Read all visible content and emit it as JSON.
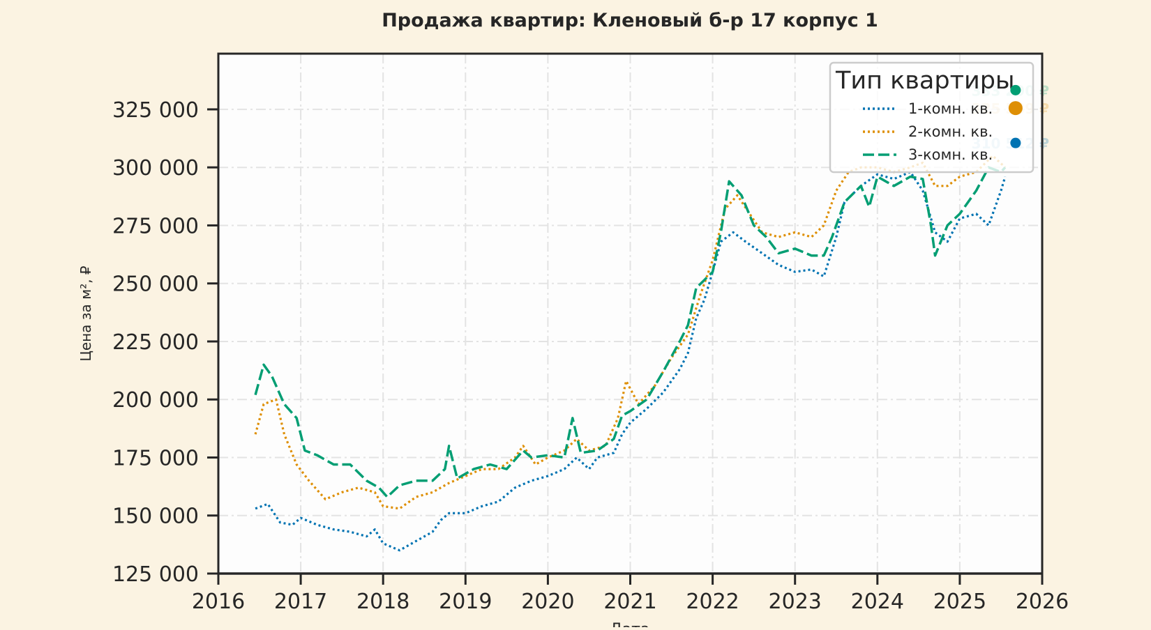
{
  "chart_data": {
    "type": "line",
    "title": "Продажа квартир: Кленовый б-р 17 корпус 1",
    "xlabel": "Дата",
    "ylabel": "Цена за м², ₽",
    "xlim": [
      2016,
      2026
    ],
    "ylim": [
      125000,
      349000
    ],
    "x_ticks": [
      2016,
      2017,
      2018,
      2019,
      2020,
      2021,
      2022,
      2023,
      2024,
      2025,
      2026
    ],
    "x_tick_labels": [
      "2016",
      "2017",
      "2018",
      "2019",
      "2020",
      "2021",
      "2022",
      "2023",
      "2024",
      "2025",
      "2026"
    ],
    "y_ticks": [
      125000,
      150000,
      175000,
      200000,
      225000,
      250000,
      275000,
      300000,
      325000
    ],
    "y_tick_labels": [
      "125 000",
      "150 000",
      "175 000",
      "200 000",
      "225 000",
      "250 000",
      "275 000",
      "300 000",
      "325 000"
    ],
    "grid": true,
    "legend": {
      "title": "Тип квартиры",
      "placement": "top-right"
    },
    "series": [
      {
        "name": "1-комн. кв.",
        "color": "#0173b2",
        "style": "dotted",
        "x": [
          2016.45,
          2016.6,
          2016.75,
          2016.9,
          2017.0,
          2017.2,
          2017.4,
          2017.6,
          2017.8,
          2017.9,
          2018.0,
          2018.2,
          2018.4,
          2018.6,
          2018.7,
          2018.8,
          2019.0,
          2019.2,
          2019.4,
          2019.6,
          2019.8,
          2020.0,
          2020.2,
          2020.35,
          2020.5,
          2020.6,
          2020.8,
          2020.9,
          2021.0,
          2021.2,
          2021.4,
          2021.6,
          2021.7,
          2021.8,
          2021.9,
          2022.0,
          2022.1,
          2022.25,
          2022.4,
          2022.6,
          2022.8,
          2023.0,
          2023.2,
          2023.35,
          2023.5,
          2023.6,
          2023.8,
          2024.0,
          2024.2,
          2024.4,
          2024.55,
          2024.7,
          2024.85,
          2025.0,
          2025.2,
          2025.35,
          2025.5,
          2025.55
        ],
        "y": [
          153000,
          155000,
          147000,
          146000,
          149000,
          146000,
          144000,
          143000,
          141000,
          144000,
          138000,
          135000,
          139000,
          143000,
          148000,
          151000,
          151000,
          154000,
          156000,
          162000,
          165000,
          167000,
          170000,
          175000,
          170000,
          175000,
          177000,
          185000,
          190000,
          196000,
          203000,
          213000,
          220000,
          235000,
          243000,
          255000,
          268000,
          272000,
          268000,
          263000,
          258000,
          255000,
          256000,
          253000,
          270000,
          285000,
          292000,
          297000,
          295000,
          298000,
          290000,
          272000,
          268000,
          278000,
          280000,
          275000,
          290000,
          296000
        ],
        "last_value": 310512,
        "last_label": "310 512 ₽"
      },
      {
        "name": "2-комн. кв.",
        "color": "#de8f05",
        "style": "dotted",
        "x": [
          2016.45,
          2016.55,
          2016.7,
          2016.8,
          2016.95,
          2017.1,
          2017.3,
          2017.5,
          2017.7,
          2017.9,
          2018.0,
          2018.2,
          2018.4,
          2018.6,
          2018.8,
          2019.0,
          2019.2,
          2019.4,
          2019.6,
          2019.7,
          2019.85,
          2020.0,
          2020.2,
          2020.35,
          2020.5,
          2020.7,
          2020.85,
          2020.95,
          2021.1,
          2021.3,
          2021.5,
          2021.7,
          2021.85,
          2022.0,
          2022.15,
          2022.3,
          2022.45,
          2022.6,
          2022.8,
          2023.0,
          2023.2,
          2023.35,
          2023.5,
          2023.65,
          2023.8,
          2024.0,
          2024.2,
          2024.4,
          2024.55,
          2024.7,
          2024.85,
          2025.0,
          2025.2,
          2025.4,
          2025.55
        ],
        "y": [
          185000,
          198000,
          200000,
          185000,
          172000,
          165000,
          157000,
          160000,
          162000,
          160000,
          154000,
          153000,
          158000,
          160000,
          164000,
          167000,
          170000,
          170000,
          175000,
          180000,
          172000,
          175000,
          178000,
          183000,
          178000,
          180000,
          192000,
          208000,
          198000,
          206000,
          218000,
          228000,
          245000,
          260000,
          282000,
          288000,
          280000,
          272000,
          270000,
          272000,
          270000,
          275000,
          290000,
          298000,
          300000,
          300000,
          298000,
          300000,
          302000,
          292000,
          292000,
          296000,
          298000,
          305000,
          300000
        ],
        "last_value": 325539,
        "last_label": "325 539 ₽"
      },
      {
        "name": "3-комн. кв.",
        "color": "#029e73",
        "style": "dashed",
        "x": [
          2016.45,
          2016.55,
          2016.65,
          2016.8,
          2016.95,
          2017.05,
          2017.2,
          2017.4,
          2017.6,
          2017.8,
          2017.95,
          2018.05,
          2018.2,
          2018.4,
          2018.6,
          2018.75,
          2018.8,
          2018.9,
          2019.1,
          2019.3,
          2019.5,
          2019.7,
          2019.8,
          2020.0,
          2020.2,
          2020.3,
          2020.4,
          2020.6,
          2020.8,
          2020.9,
          2021.0,
          2021.2,
          2021.4,
          2021.6,
          2021.7,
          2021.8,
          2022.0,
          2022.1,
          2022.2,
          2022.35,
          2022.5,
          2022.65,
          2022.8,
          2023.0,
          2023.2,
          2023.35,
          2023.45,
          2023.6,
          2023.8,
          2023.9,
          2024.0,
          2024.2,
          2024.4,
          2024.55,
          2024.65,
          2024.7,
          2024.85,
          2025.0,
          2025.2,
          2025.35,
          2025.5,
          2025.55
        ],
        "y": [
          202000,
          215000,
          210000,
          198000,
          192000,
          178000,
          176000,
          172000,
          172000,
          165000,
          162000,
          158000,
          163000,
          165000,
          165000,
          170000,
          180000,
          166000,
          170000,
          172000,
          170000,
          178000,
          175000,
          176000,
          175000,
          192000,
          177000,
          178000,
          183000,
          193000,
          195000,
          200000,
          212000,
          225000,
          232000,
          248000,
          255000,
          272000,
          294000,
          288000,
          275000,
          270000,
          263000,
          265000,
          262000,
          262000,
          270000,
          285000,
          292000,
          283000,
          296000,
          292000,
          296000,
          295000,
          275000,
          262000,
          275000,
          280000,
          290000,
          300000,
          298000,
          300000
        ],
        "last_value": 333290,
        "last_label": "333 290 ₽"
      }
    ]
  }
}
